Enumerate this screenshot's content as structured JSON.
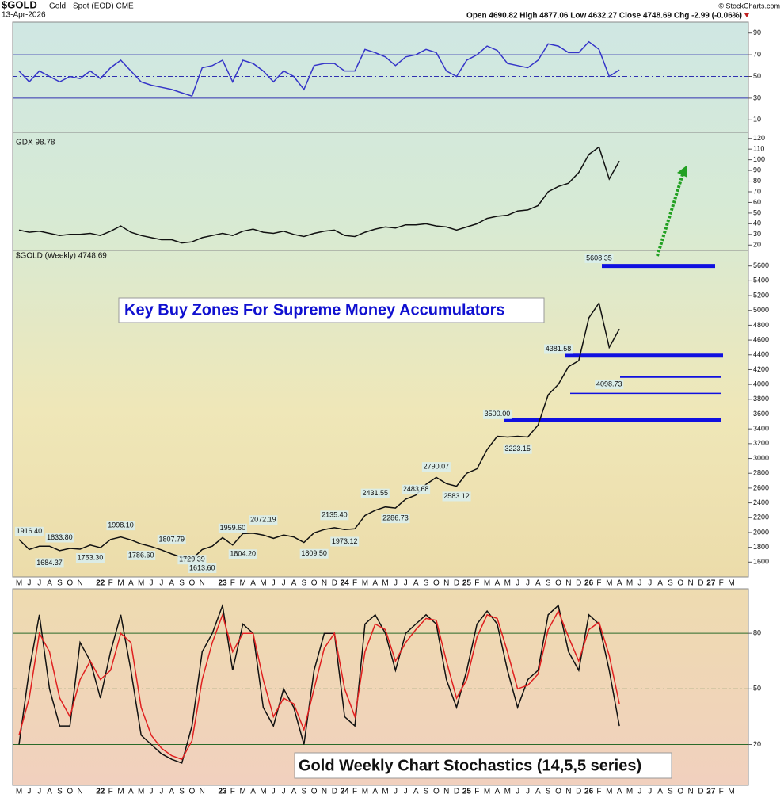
{
  "header": {
    "symbol": "$GOLD",
    "name": "Gold - Spot (EOD) CME",
    "date": "13-Apr-2026",
    "quote": "Open 4690.82  High 4877.06  Low 4632.27  Close 4748.69  Chg -2.99 (-0.06%)",
    "credit": "© StockCharts.com"
  },
  "x_axis": {
    "categories": [
      "M",
      "J",
      "J",
      "A",
      "S",
      "O",
      "N",
      null,
      "22",
      "F",
      "M",
      "A",
      "M",
      "J",
      "J",
      "A",
      "S",
      "O",
      "N",
      null,
      "23",
      "F",
      "M",
      "A",
      "M",
      "J",
      "J",
      "A",
      "S",
      "O",
      "N",
      "D",
      "24",
      "F",
      "M",
      "A",
      "M",
      "J",
      "J",
      "A",
      "S",
      "O",
      "N",
      "D",
      "25",
      "F",
      "M",
      "A",
      "M",
      "J",
      "J",
      "A",
      "S",
      "O",
      "N",
      "D",
      "26",
      "F",
      "M",
      "A",
      "M",
      "J",
      "J",
      "A",
      "S",
      "O",
      "N",
      "D",
      "27",
      "F",
      "M"
    ]
  },
  "chart_data": [
    {
      "type": "line",
      "series": [
        {
          "color": "#3535c8",
          "values": [
            55,
            45,
            55,
            50,
            45,
            50,
            48,
            55,
            48,
            58,
            65,
            55,
            45,
            42,
            40,
            38,
            35,
            32,
            58,
            60,
            65,
            45,
            65,
            62,
            55,
            45,
            55,
            50,
            38,
            60,
            62,
            62,
            55,
            55,
            75,
            72,
            68,
            60,
            68,
            70,
            75,
            72,
            55,
            50,
            65,
            70,
            78,
            74,
            62,
            60,
            58,
            65,
            80,
            78,
            72,
            72,
            82,
            75,
            50,
            56,
            null,
            null,
            null,
            null,
            null,
            null,
            null,
            null,
            null,
            null,
            null
          ]
        }
      ],
      "ylim": [
        0,
        100
      ],
      "yticks": [
        10,
        30,
        50,
        70,
        90
      ],
      "reference_lines": [
        30,
        50,
        70
      ]
    },
    {
      "type": "line",
      "title": "GDX 98.78",
      "series": [
        {
          "color": "#111111",
          "values": [
            34,
            32,
            33,
            31,
            29,
            30,
            30,
            31,
            29,
            33,
            38,
            32,
            29,
            27,
            25,
            25,
            22,
            23,
            27,
            29,
            31,
            29,
            33,
            35,
            32,
            31,
            33,
            30,
            28,
            31,
            33,
            34,
            29,
            28,
            32,
            35,
            37,
            36,
            39,
            39,
            40,
            38,
            37,
            34,
            37,
            40,
            45,
            47,
            48,
            52,
            53,
            57,
            70,
            75,
            78,
            88,
            105,
            112,
            82,
            98.78,
            null,
            null,
            null,
            null,
            null,
            null,
            null,
            null,
            null,
            null,
            null
          ]
        }
      ],
      "ylim": [
        15,
        125
      ],
      "yticks": [
        20,
        30,
        40,
        50,
        60,
        70,
        80,
        90,
        100,
        110,
        120
      ]
    },
    {
      "type": "line",
      "title": "$GOLD (Weekly) 4748.69",
      "annotation": "Key Buy Zones For Supreme Money Accumulators",
      "series": [
        {
          "color": "#111111",
          "values": [
            1905,
            1770,
            1815,
            1815,
            1755,
            1785,
            1775,
            1830,
            1795,
            1905,
            1940,
            1900,
            1845,
            1810,
            1765,
            1710,
            1665,
            1640,
            1770,
            1815,
            1930,
            1830,
            1985,
            1990,
            1965,
            1920,
            1965,
            1940,
            1865,
            1995,
            2040,
            2065,
            2040,
            2050,
            2230,
            2300,
            2345,
            2330,
            2450,
            2505,
            2650,
            2745,
            2660,
            2625,
            2800,
            2860,
            3120,
            3300,
            3290,
            3300,
            3290,
            3450,
            3860,
            4000,
            4240,
            4320,
            4900,
            5100,
            4500,
            4748.69,
            null,
            null,
            null,
            null,
            null,
            null,
            null,
            null,
            null,
            null,
            null
          ]
        }
      ],
      "price_labels": [
        {
          "value": 1916.4,
          "label": "1916.40"
        },
        {
          "value": 1833.8,
          "label": "1833.80"
        },
        {
          "value": 1684.37,
          "label": "1684.37"
        },
        {
          "value": 1753.3,
          "label": "1753.30"
        },
        {
          "value": 1998.1,
          "label": "1998.10"
        },
        {
          "value": 1786.6,
          "label": "1786.60"
        },
        {
          "value": 1807.79,
          "label": "1807.79"
        },
        {
          "value": 1729.39,
          "label": "1729.39"
        },
        {
          "value": 1613.6,
          "label": "1613.60"
        },
        {
          "value": 1959.6,
          "label": "1959.60"
        },
        {
          "value": 1804.2,
          "label": "1804.20"
        },
        {
          "value": 2072.19,
          "label": "2072.19"
        },
        {
          "value": 1809.5,
          "label": "1809.50"
        },
        {
          "value": 2135.4,
          "label": "2135.40"
        },
        {
          "value": 1973.12,
          "label": "1973.12"
        },
        {
          "value": 2431.55,
          "label": "2431.55"
        },
        {
          "value": 2286.73,
          "label": "2286.73"
        },
        {
          "value": 2483.68,
          "label": "2483.68"
        },
        {
          "value": 2790.07,
          "label": "2790.07"
        },
        {
          "value": 2583.12,
          "label": "2583.12"
        },
        {
          "value": 3500,
          "label": "3500.00"
        },
        {
          "value": 3223.15,
          "label": "3223.15"
        },
        {
          "value": 4381.58,
          "label": "4381.58"
        },
        {
          "value": 4098.73,
          "label": "4098.73"
        },
        {
          "value": 5608.35,
          "label": "5608.35"
        }
      ],
      "buy_zones": [
        5600,
        4390,
        4100,
        3880,
        3520
      ],
      "ylim": [
        1400,
        5800
      ],
      "yticks": [
        1600,
        1800,
        2000,
        2200,
        2400,
        2600,
        2800,
        3000,
        3200,
        3400,
        3600,
        3800,
        4000,
        4200,
        4400,
        4600,
        4800,
        5000,
        5200,
        5400,
        5600
      ]
    },
    {
      "type": "line",
      "title": "Gold Weekly Chart Stochastics (14,5,5 series)",
      "series": [
        {
          "color": "#111111",
          "values": [
            20,
            60,
            90,
            50,
            30,
            30,
            75,
            65,
            45,
            70,
            90,
            60,
            25,
            20,
            15,
            12,
            10,
            30,
            70,
            80,
            95,
            60,
            85,
            80,
            40,
            30,
            50,
            40,
            20,
            60,
            80,
            80,
            35,
            30,
            85,
            90,
            80,
            60,
            80,
            85,
            90,
            85,
            55,
            40,
            60,
            85,
            92,
            85,
            60,
            40,
            55,
            60,
            90,
            95,
            70,
            60,
            90,
            85,
            60,
            30,
            null,
            null,
            null,
            null,
            null,
            null,
            null,
            null,
            null,
            null,
            null
          ]
        },
        {
          "color": "#e02020",
          "values": [
            25,
            45,
            80,
            70,
            45,
            35,
            55,
            65,
            55,
            60,
            80,
            75,
            40,
            25,
            18,
            14,
            12,
            22,
            55,
            75,
            90,
            70,
            80,
            80,
            55,
            35,
            45,
            42,
            28,
            50,
            72,
            80,
            50,
            35,
            70,
            85,
            82,
            65,
            75,
            82,
            88,
            87,
            65,
            45,
            55,
            78,
            90,
            88,
            70,
            50,
            52,
            58,
            82,
            92,
            78,
            65,
            82,
            86,
            68,
            42,
            null,
            null,
            null,
            null,
            null,
            null,
            null,
            null,
            null,
            null,
            null
          ]
        }
      ],
      "ylim": [
        -2,
        104
      ],
      "yticks": [
        20,
        50,
        80
      ],
      "reference_lines": [
        20,
        50,
        80
      ]
    }
  ]
}
